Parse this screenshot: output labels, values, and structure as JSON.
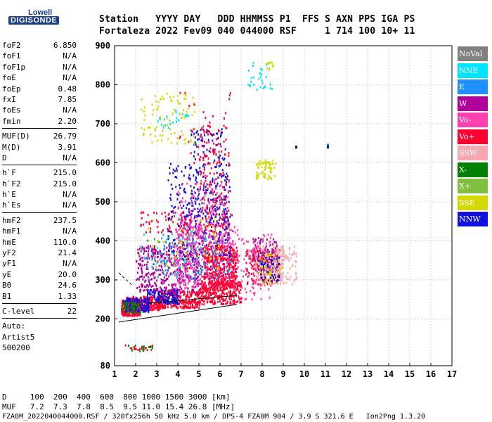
{
  "logo": {
    "line1": "Lowell",
    "line2": "DIGISONDE"
  },
  "header": {
    "line1": "Station   YYYY DAY   DDD HHMMSS P1  FFS S AXN PPS IGA PS",
    "line2": "Fortaleza 2022 Fev09 040 044000 RSF     1 714 100 10+ 11"
  },
  "params": {
    "group1": [
      {
        "name": "foF2",
        "value": "6.850"
      },
      {
        "name": "foF1",
        "value": "N/A"
      },
      {
        "name": "foF1p",
        "value": "N/A"
      },
      {
        "name": "foE",
        "value": "N/A"
      },
      {
        "name": "foEp",
        "value": "0.48"
      },
      {
        "name": "fxI",
        "value": "7.85"
      },
      {
        "name": "foEs",
        "value": "N/A"
      },
      {
        "name": "fmin",
        "value": "2.20"
      }
    ],
    "group2": [
      {
        "name": "MUF(D)",
        "value": "26.79"
      },
      {
        "name": "M(D)",
        "value": "3.91"
      },
      {
        "name": "D",
        "value": "N/A"
      }
    ],
    "group3": [
      {
        "name": "h`F",
        "value": "215.0"
      },
      {
        "name": "h`F2",
        "value": "215.0"
      },
      {
        "name": "h`E",
        "value": "N/A"
      },
      {
        "name": "h`Es",
        "value": "N/A"
      }
    ],
    "group4": [
      {
        "name": "hmF2",
        "value": "237.5"
      },
      {
        "name": "hmF1",
        "value": "N/A"
      },
      {
        "name": "hmE",
        "value": "110.0"
      },
      {
        "name": "yF2",
        "value": "21.4"
      },
      {
        "name": "yF1",
        "value": "N/A"
      },
      {
        "name": "yE",
        "value": "20.0"
      },
      {
        "name": "B0",
        "value": "24.6"
      },
      {
        "name": "B1",
        "value": "1.33"
      }
    ],
    "group5": [
      {
        "name": "C-level",
        "value": "22"
      }
    ],
    "auto": {
      "label": "Auto:",
      "software": "Artist5",
      "version": "500200"
    }
  },
  "legend": [
    {
      "label": "NoVal",
      "color": "#808080"
    },
    {
      "label": "NNE",
      "color": "#00e5ff"
    },
    {
      "label": "E",
      "color": "#1e90ff"
    },
    {
      "label": "W",
      "color": "#b0009a"
    },
    {
      "label": "Vo-",
      "color": "#ff40b0"
    },
    {
      "label": "Vo+",
      "color": "#ff0030"
    },
    {
      "label": "SSW",
      "color": "#f5a8b0"
    },
    {
      "label": "X-",
      "color": "#008000"
    },
    {
      "label": "X+",
      "color": "#7fc040"
    },
    {
      "label": "SSE",
      "color": "#d2d800"
    },
    {
      "label": "NNW",
      "color": "#1010e0"
    }
  ],
  "footer": {
    "d_row": "D     100  200  400  600  800 1000 1500 3000 [km]",
    "muf_row": "MUF   7.2  7.3  7.8  8.5  9.5 11.0 15.4 26.8 [MHz]",
    "info": "FZA0M_2022040044000.RSF / 320fx256h 50 kHz 5.0 km / DPS-4 FZA0M 904 / 3.9 S 321.6 E   Ion2Png 1.3.20"
  },
  "chart_data": {
    "type": "scatter",
    "title": "",
    "xlabel": "",
    "ylabel": "",
    "xlim": [
      1,
      17
    ],
    "ylim": [
      80,
      900
    ],
    "xticks": [
      1,
      2,
      3,
      4,
      5,
      6,
      7,
      8,
      9,
      10,
      11,
      12,
      13,
      14,
      15,
      16,
      17
    ],
    "yticks": [
      80,
      200,
      300,
      400,
      500,
      600,
      700,
      800,
      900
    ],
    "grid": "dotted",
    "legend_position": "right",
    "clusters": [
      {
        "x": [
          1.3,
          2.2
        ],
        "y": [
          210,
          250
        ],
        "color": "#ff0030",
        "n": 260
      },
      {
        "x": [
          1.5,
          3.2
        ],
        "y": [
          225,
          260
        ],
        "color": "#ff0030",
        "n": 260
      },
      {
        "x": [
          3.0,
          5.0
        ],
        "y": [
          230,
          275
        ],
        "color": "#ff0030",
        "n": 280
      },
      {
        "x": [
          5.0,
          7.0
        ],
        "y": [
          240,
          300
        ],
        "color": "#ff0030",
        "n": 300
      },
      {
        "x": [
          1.4,
          2.6
        ],
        "y": [
          220,
          255
        ],
        "color": "#1010e0",
        "n": 120
      },
      {
        "x": [
          2.5,
          4.0
        ],
        "y": [
          240,
          280
        ],
        "color": "#1010e0",
        "n": 140
      },
      {
        "x": [
          1.3,
          2.2
        ],
        "y": [
          215,
          245
        ],
        "color": "#008000",
        "n": 50
      },
      {
        "x": [
          2.0,
          5.0
        ],
        "y": [
          270,
          390
        ],
        "color": "#b0009a",
        "n": 380
      },
      {
        "x": [
          4.0,
          6.6
        ],
        "y": [
          300,
          480
        ],
        "color": "#b0009a",
        "n": 260
      },
      {
        "x": [
          3.8,
          6.8
        ],
        "y": [
          280,
          440
        ],
        "color": "#ff40b0",
        "n": 300
      },
      {
        "x": [
          5.2,
          6.8
        ],
        "y": [
          280,
          390
        ],
        "color": "#ff0030",
        "n": 360
      },
      {
        "x": [
          3.5,
          6.5
        ],
        "y": [
          350,
          600
        ],
        "color": "#1010e0",
        "n": 260
      },
      {
        "x": [
          4.6,
          6.3
        ],
        "y": [
          450,
          690
        ],
        "color": "#1010e0",
        "n": 140
      },
      {
        "x": [
          5.0,
          6.4
        ],
        "y": [
          420,
          700
        ],
        "color": "#ff0030",
        "n": 160
      },
      {
        "x": [
          4.0,
          6.5
        ],
        "y": [
          380,
          560
        ],
        "color": "#ff40b0",
        "n": 180
      },
      {
        "x": [
          2.0,
          5.2
        ],
        "y": [
          310,
          430
        ],
        "color": "#00e5ff",
        "n": 50
      },
      {
        "x": [
          2.5,
          6.0
        ],
        "y": [
          330,
          460
        ],
        "color": "#d2d800",
        "n": 70
      },
      {
        "x": [
          2.5,
          6.5
        ],
        "y": [
          300,
          420
        ],
        "color": "#1e90ff",
        "n": 90
      },
      {
        "x": [
          7.2,
          8.8
        ],
        "y": [
          290,
          380
        ],
        "color": "#ff0030",
        "n": 200
      },
      {
        "x": [
          7.6,
          9.0
        ],
        "y": [
          300,
          390
        ],
        "color": "#f5a8b0",
        "n": 150
      },
      {
        "x": [
          7.8,
          8.9
        ],
        "y": [
          290,
          370
        ],
        "color": "#d2d800",
        "n": 80
      },
      {
        "x": [
          7.9,
          8.8
        ],
        "y": [
          300,
          360
        ],
        "color": "#1010e0",
        "n": 60
      },
      {
        "x": [
          7.5,
          8.7
        ],
        "y": [
          350,
          410
        ],
        "color": "#b0009a",
        "n": 70
      },
      {
        "x": [
          8.5,
          9.6
        ],
        "y": [
          290,
          390
        ],
        "color": "#f5a8b0",
        "n": 100
      },
      {
        "x": [
          6.8,
          8.5
        ],
        "y": [
          250,
          420
        ],
        "color": "#ff40b0",
        "n": 90
      },
      {
        "x": [
          2.2,
          4.8
        ],
        "y": [
          650,
          780
        ],
        "color": "#d2d800",
        "n": 90
      },
      {
        "x": [
          3.0,
          4.5
        ],
        "y": [
          690,
          740
        ],
        "color": "#00e5ff",
        "n": 20
      },
      {
        "x": [
          7.7,
          8.6
        ],
        "y": [
          560,
          610
        ],
        "color": "#d2d800",
        "n": 60
      },
      {
        "x": [
          7.3,
          8.5
        ],
        "y": [
          790,
          860
        ],
        "color": "#00e5ff",
        "n": 30
      },
      {
        "x": [
          8.2,
          8.5
        ],
        "y": [
          840,
          860
        ],
        "color": "#d2d800",
        "n": 12
      },
      {
        "x": [
          1.4,
          2.9
        ],
        "y": [
          120,
          135
        ],
        "color": "#008000",
        "n": 20
      },
      {
        "x": [
          1.4,
          2.9
        ],
        "y": [
          120,
          135
        ],
        "color": "#ff0030",
        "n": 14
      },
      {
        "x": [
          2.2,
          4.6
        ],
        "y": [
          420,
          480
        ],
        "color": "#ff0030",
        "n": 60
      },
      {
        "x": [
          4.0,
          6.5
        ],
        "y": [
          600,
          800
        ],
        "color": "#ff0030",
        "n": 30
      }
    ],
    "points": [
      {
        "x": 9.6,
        "y": 640,
        "color": "#000080"
      },
      {
        "x": 11.1,
        "y": 645,
        "color": "#008080"
      },
      {
        "x": 11.1,
        "y": 640,
        "color": "#1010e0"
      }
    ],
    "trace_lines": [
      {
        "x": [
          1.2,
          6.8
        ],
        "y": [
          192,
          237
        ],
        "color": "#000000"
      },
      {
        "x": [
          1.2,
          1.8
        ],
        "y": [
          318,
          288
        ],
        "color": "#000000",
        "dashed": true
      },
      {
        "x": [
          2.6,
          6.8
        ],
        "y": [
          240,
          260
        ],
        "color": "#000000"
      }
    ]
  }
}
